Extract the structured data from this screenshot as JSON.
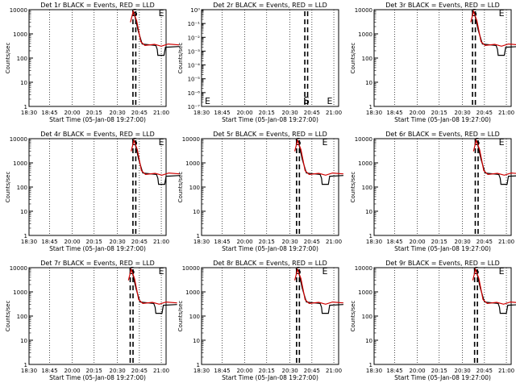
{
  "chart_data": [
    {
      "type": "line",
      "title": "Det 1r BLACK = Events, RED = LLD",
      "xlabel": "Start Time (05-Jan-08 19:27:00)",
      "ylabel": "Counts/sec",
      "y_scale": "log",
      "ylim": [
        1,
        10000
      ],
      "y_ticks": [
        "1",
        "10",
        "100",
        "1000",
        "10000"
      ],
      "x_ticks": [
        "18:30",
        "18:45",
        "20:00",
        "20:15",
        "20:30",
        "20:45",
        "21:00"
      ],
      "annotations": [
        "S",
        "E"
      ],
      "grid": "x dotted",
      "series": [
        {
          "color": "#000000",
          "style": "solid"
        },
        {
          "color": "#d00000",
          "style": "solid"
        }
      ]
    },
    {
      "type": "line",
      "title": "Det 2r BLACK = Events, RED = LLD",
      "xlabel": "Start Time (05-Jan-08 19:27:00)",
      "ylabel": "Counts/sec",
      "y_scale": "log",
      "ylim": [
        1e-07,
        1
      ],
      "y_ticks": [
        "10⁻⁷",
        "10⁻⁶",
        "10⁻⁵",
        "10⁻⁴",
        "10⁻³",
        "10⁻²",
        "10⁻¹",
        "10⁰"
      ],
      "x_ticks": [
        "18:30",
        "18:45",
        "20:00",
        "20:15",
        "20:30",
        "20:45",
        "21:00"
      ],
      "annotations": [
        "S",
        "E"
      ],
      "grid": "x dotted",
      "series": []
    },
    {
      "type": "line",
      "title": "Det 3r BLACK = Events, RED = LLD",
      "xlabel": "Start Time (05-Jan-08 19:27:00)",
      "ylabel": "Counts/sec",
      "y_scale": "log",
      "ylim": [
        1,
        10000
      ],
      "y_ticks": [
        "1",
        "10",
        "100",
        "1000",
        "10000"
      ],
      "x_ticks": [
        "18:30",
        "18:45",
        "20:00",
        "20:15",
        "20:30",
        "20:45",
        "21:00"
      ],
      "annotations": [
        "S",
        "E"
      ],
      "grid": "x dotted",
      "series": [
        {
          "color": "#000000",
          "style": "solid"
        },
        {
          "color": "#d00000",
          "style": "solid"
        }
      ]
    },
    {
      "type": "line",
      "title": "Det 4r BLACK = Events, RED = LLD",
      "xlabel": "Start Time (05-Jan-08 19:27:00)",
      "ylabel": "Counts/sec",
      "y_scale": "log",
      "ylim": [
        1,
        10000
      ],
      "y_ticks": [
        "1",
        "10",
        "100",
        "1000",
        "10000"
      ],
      "x_ticks": [
        "18:30",
        "18:45",
        "20:00",
        "20:15",
        "20:30",
        "20:45",
        "21:00"
      ],
      "annotations": [
        "S",
        "E"
      ],
      "grid": "x dotted",
      "series": [
        {
          "color": "#000000",
          "style": "solid"
        },
        {
          "color": "#d00000",
          "style": "solid"
        }
      ]
    },
    {
      "type": "line",
      "title": "Det 5r BLACK = Events, RED = LLD",
      "xlabel": "Start Time (05-Jan-08 19:27:00)",
      "ylabel": "Counts/sec",
      "y_scale": "log",
      "ylim": [
        1,
        10000
      ],
      "y_ticks": [
        "1",
        "10",
        "100",
        "1000",
        "10000"
      ],
      "x_ticks": [
        "18:30",
        "18:45",
        "20:00",
        "20:15",
        "20:30",
        "20:45",
        "21:00"
      ],
      "annotations": [
        "S",
        "E"
      ],
      "grid": "x dotted",
      "series": [
        {
          "color": "#000000",
          "style": "solid"
        },
        {
          "color": "#d00000",
          "style": "solid"
        }
      ]
    },
    {
      "type": "line",
      "title": "Det 6r BLACK = Events, RED = LLD",
      "xlabel": "Start Time (05-Jan-08 19:27:00)",
      "ylabel": "Counts/sec",
      "y_scale": "log",
      "ylim": [
        1,
        10000
      ],
      "y_ticks": [
        "1",
        "10",
        "100",
        "1000",
        "10000"
      ],
      "x_ticks": [
        "18:30",
        "18:45",
        "20:00",
        "20:15",
        "20:30",
        "20:45",
        "21:00"
      ],
      "annotations": [
        "S",
        "E"
      ],
      "grid": "x dotted",
      "series": [
        {
          "color": "#000000",
          "style": "solid"
        },
        {
          "color": "#d00000",
          "style": "solid"
        }
      ]
    },
    {
      "type": "line",
      "title": "Det 7r BLACK = Events, RED = LLD",
      "xlabel": "Start Time (05-Jan-08 19:27:00)",
      "ylabel": "Counts/sec",
      "y_scale": "log",
      "ylim": [
        1,
        10000
      ],
      "y_ticks": [
        "1",
        "10",
        "100",
        "1000",
        "10000"
      ],
      "x_ticks": [
        "18:30",
        "18:45",
        "20:00",
        "20:15",
        "20:30",
        "20:45",
        "21:00"
      ],
      "annotations": [
        "S",
        "E"
      ],
      "grid": "x dotted",
      "series": [
        {
          "color": "#000000",
          "style": "solid"
        },
        {
          "color": "#d00000",
          "style": "solid"
        }
      ]
    },
    {
      "type": "line",
      "title": "Det 8r BLACK = Events, RED = LLD",
      "xlabel": "Start Time (05-Jan-08 19:27:00)",
      "ylabel": "Counts/sec",
      "y_scale": "log",
      "ylim": [
        1,
        10000
      ],
      "y_ticks": [
        "1",
        "10",
        "100",
        "1000",
        "10000"
      ],
      "x_ticks": [
        "18:30",
        "18:45",
        "20:00",
        "20:15",
        "20:30",
        "20:45",
        "21:00"
      ],
      "annotations": [
        "S",
        "E"
      ],
      "grid": "x dotted",
      "series": [
        {
          "color": "#000000",
          "style": "solid"
        },
        {
          "color": "#d00000",
          "style": "solid"
        }
      ]
    },
    {
      "type": "line",
      "title": "Det 9r BLACK = Events, RED = LLD",
      "xlabel": "Start Time (05-Jan-08 19:27:00)",
      "ylabel": "Counts/sec",
      "y_scale": "log",
      "ylim": [
        1,
        10000
      ],
      "y_ticks": [
        "1",
        "10",
        "100",
        "1000",
        "10000"
      ],
      "x_ticks": [
        "18:30",
        "18:45",
        "20:00",
        "20:15",
        "20:30",
        "20:45",
        "21:00"
      ],
      "annotations": [
        "S",
        "E"
      ],
      "grid": "x dotted",
      "series": [
        {
          "color": "#000000",
          "style": "solid"
        },
        {
          "color": "#d00000",
          "style": "solid"
        }
      ]
    }
  ]
}
